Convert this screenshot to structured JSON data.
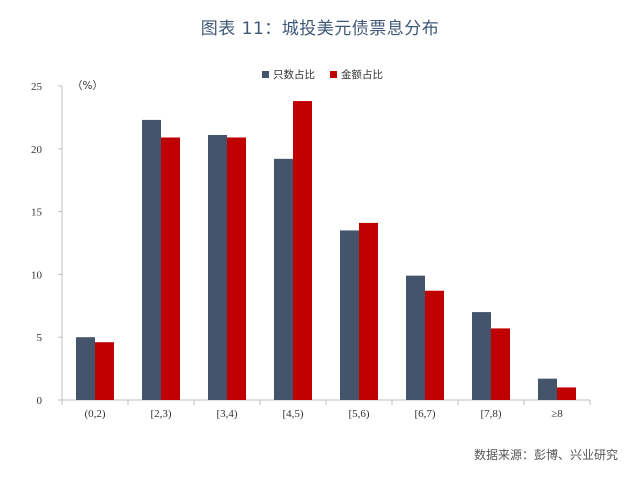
{
  "title": "图表 11：城投美元债票息分布",
  "source": "数据来源：彭博、兴业研究",
  "unit": "（%）",
  "chart_data": {
    "type": "bar",
    "categories": [
      "(0,2)",
      "[2,3)",
      "[3,4)",
      "[4,5)",
      "[5,6)",
      "[6,7)",
      "[7,8)",
      "≥8"
    ],
    "series": [
      {
        "name": "只数占比",
        "color": "#44546a",
        "values": [
          5.0,
          22.3,
          21.1,
          19.2,
          13.5,
          9.9,
          7.0,
          1.7
        ]
      },
      {
        "name": "金额占比",
        "color": "#c00000",
        "values": [
          4.6,
          20.9,
          20.9,
          23.8,
          14.1,
          8.7,
          5.7,
          1.0
        ]
      }
    ],
    "ylim": [
      0,
      25
    ],
    "yticks": [
      0,
      5,
      10,
      15,
      20,
      25
    ],
    "grid": false,
    "legend_position": "top-center"
  }
}
